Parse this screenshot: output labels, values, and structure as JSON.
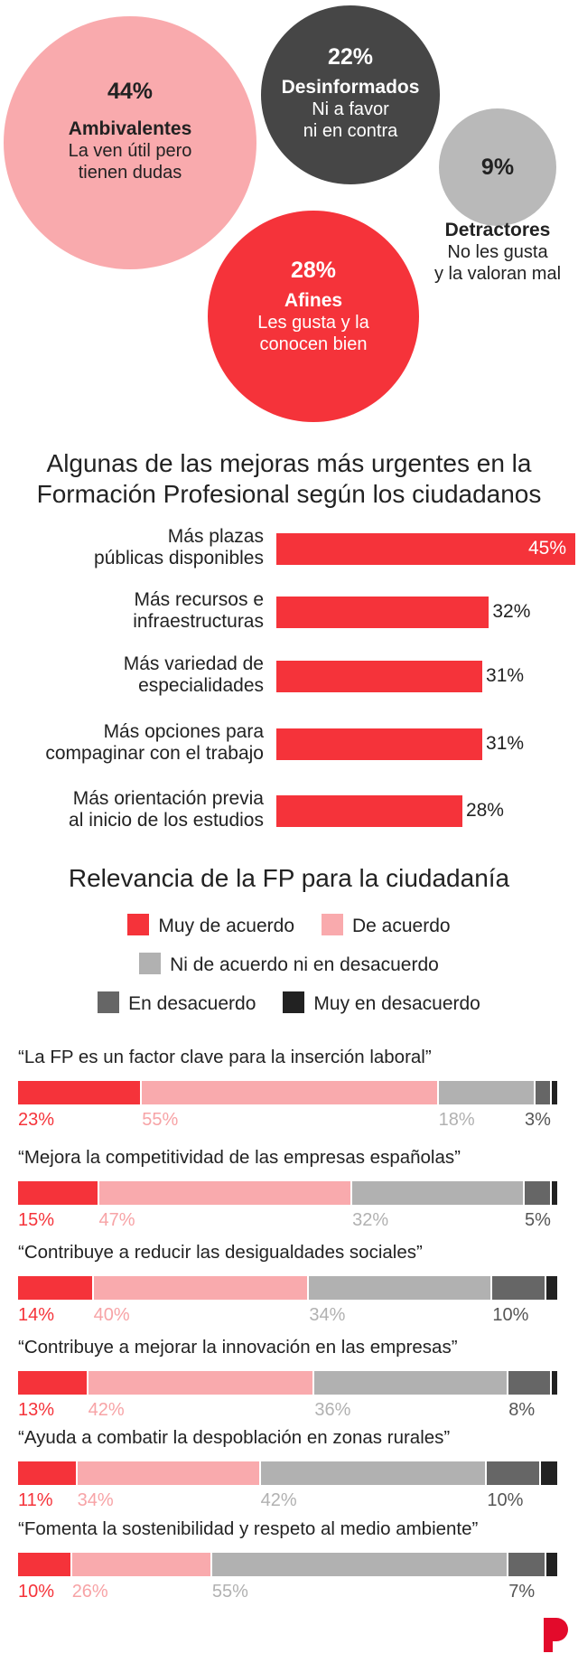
{
  "colors": {
    "muy_de_acuerdo": "#f5333a",
    "de_acuerdo": "#f9aaad",
    "ni": "#b1b1b1",
    "en_desacuerdo": "#666666",
    "muy_en_desacuerdo": "#222222",
    "bubble_dark": "#464646",
    "bubble_gray": "#b9b9b9",
    "logo": "#e30a2b"
  },
  "bubbles": [
    {
      "pct": "44%",
      "name": "Ambivalentes",
      "desc1": "La ven útil pero",
      "desc2": "tienen dudas"
    },
    {
      "pct": "22%",
      "name": "Desinformados",
      "desc1": "Ni a favor",
      "desc2": "ni en contra"
    },
    {
      "pct": "9%",
      "name": "Detractores",
      "desc1": "No les gusta",
      "desc2": "y la valoran mal"
    },
    {
      "pct": "28%",
      "name": "Afines",
      "desc1": "Les gusta y la",
      "desc2": "conocen bien"
    }
  ],
  "chart_data": [
    {
      "type": "bar",
      "orientation": "horizontal",
      "title": "Algunas de las mejoras más urgentes en la Formación Profesional según los ciudadanos",
      "title1": "Algunas de las mejoras más urgentes en la",
      "title2": "Formación Profesional según los ciudadanos",
      "categories": [
        [
          "Más plazas",
          "públicas disponibles"
        ],
        [
          "Más recursos e",
          "infraestructuras"
        ],
        [
          "Más variedad de",
          "especialidades"
        ],
        [
          "Más opciones para",
          "compaginar con el trabajo"
        ],
        [
          "Más orientación previa",
          "al inicio de los estudios"
        ]
      ],
      "values": [
        45,
        32,
        31,
        31,
        28
      ],
      "labels": [
        "45%",
        "32%",
        "31%",
        "31%",
        "28%"
      ],
      "xlim": [
        0,
        45
      ]
    },
    {
      "type": "bar",
      "orientation": "horizontal-stacked",
      "title": "Relevancia de la FP para la ciudadanía",
      "legend": [
        "Muy de acuerdo",
        "De acuerdo",
        "Ni de acuerdo ni en desacuerdo",
        "En desacuerdo",
        "Muy en desacuerdo"
      ],
      "categories": [
        "“La FP es un factor clave para la inserción laboral”",
        "“Mejora la competitividad de las empresas españolas”",
        "“Contribuye a reducir las desigualdades sociales”",
        "“Contribuye a mejorar la innovación en las empresas”",
        "“Ayuda a combatir la despoblación en zonas rurales”",
        "“Fomenta la sostenibilidad y respeto al medio ambiente”"
      ],
      "series": [
        {
          "name": "Muy de acuerdo",
          "values": [
            23,
            15,
            14,
            13,
            11,
            10
          ]
        },
        {
          "name": "De acuerdo",
          "values": [
            55,
            47,
            40,
            42,
            34,
            26
          ]
        },
        {
          "name": "Ni de acuerdo ni en desacuerdo",
          "values": [
            18,
            32,
            34,
            36,
            42,
            55
          ]
        },
        {
          "name": "En desacuerdo",
          "values": [
            3,
            5,
            10,
            8,
            10,
            7
          ]
        },
        {
          "name": "Muy en desacuerdo",
          "values": [
            1,
            1,
            2,
            1,
            3,
            2
          ]
        }
      ]
    }
  ]
}
